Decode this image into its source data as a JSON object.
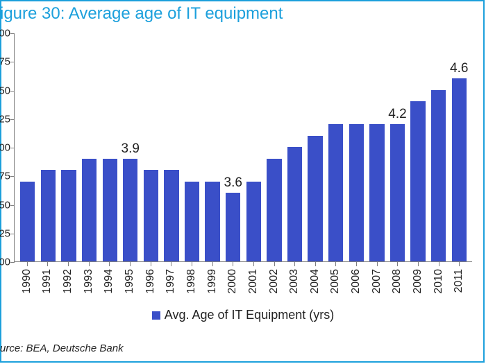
{
  "chart": {
    "type": "bar",
    "title": "igure 30: Average age of IT equipment",
    "title_color": "#1ca0dc",
    "title_fontsize": 24,
    "frame_color": "#1ca0dc",
    "axis_color": "#7f7f7f",
    "background_color": "#ffffff",
    "bar_color": "#3a4fc8",
    "bar_width_ratio": 0.72,
    "label_fontsize": 16,
    "callout_fontsize": 19,
    "ylim": [
      3.0,
      5.0
    ],
    "ytick_step": 0.25,
    "yticks": [
      "00",
      "25",
      "50",
      "75",
      "00",
      "25",
      "50",
      "75",
      "00"
    ],
    "years": [
      "1990",
      "1991",
      "1992",
      "1993",
      "1994",
      "1995",
      "1996",
      "1997",
      "1998",
      "1999",
      "2000",
      "2001",
      "2002",
      "2003",
      "2004",
      "2005",
      "2006",
      "2007",
      "2008",
      "2009",
      "2010",
      "2011"
    ],
    "values": [
      3.7,
      3.8,
      3.8,
      3.9,
      3.9,
      3.9,
      3.8,
      3.8,
      3.7,
      3.7,
      3.6,
      3.7,
      3.9,
      4.0,
      4.1,
      4.2,
      4.2,
      4.2,
      4.2,
      4.4,
      4.5,
      4.6
    ],
    "callouts": {
      "1995": "3.9",
      "2000": "3.6",
      "2008": "4.2",
      "2011": "4.6"
    },
    "legend_label": "Avg. Age of IT Equipment (yrs)",
    "source": "urce: BEA, Deutsche Bank"
  }
}
